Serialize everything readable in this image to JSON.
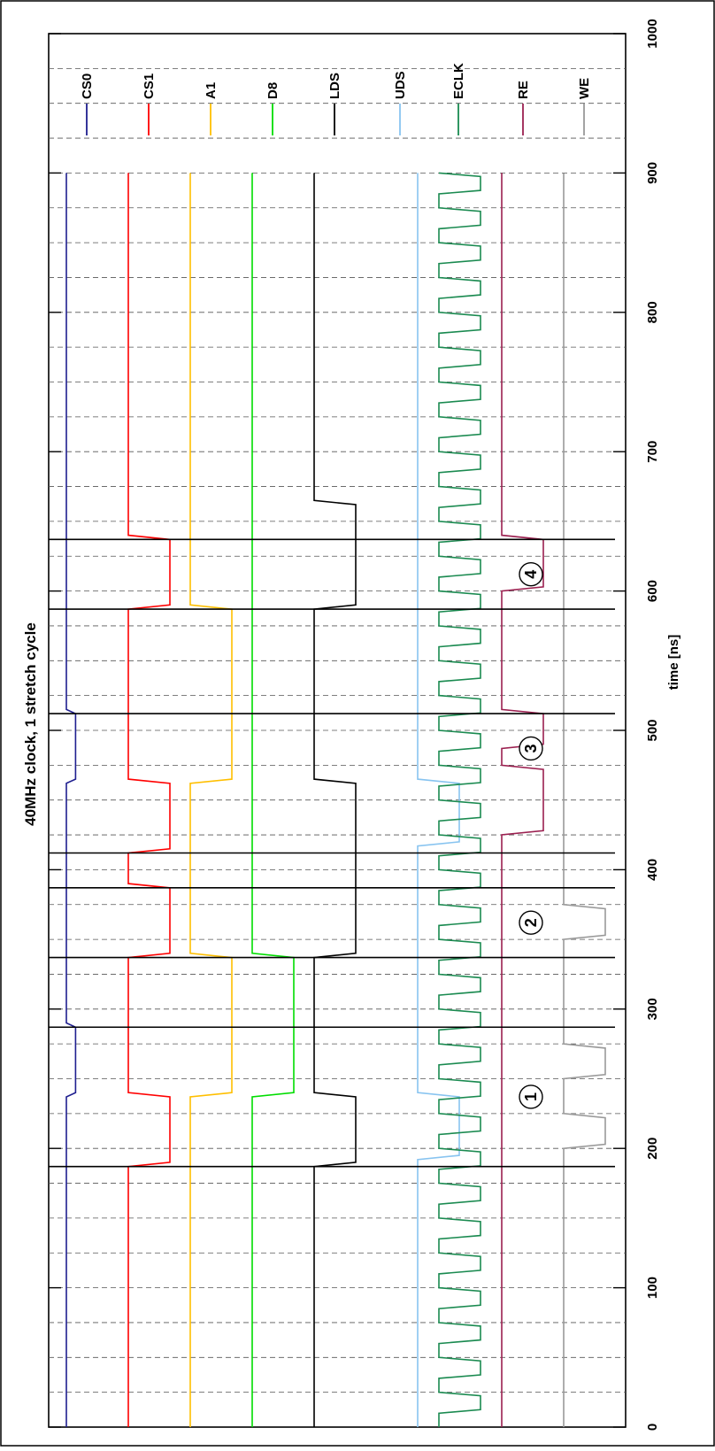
{
  "chart_data": {
    "type": "line",
    "title": "40MHz clock, 1 stretch cycle",
    "xlabel": "time [ns]",
    "xlim": [
      0,
      1000
    ],
    "x_ticks": [
      0,
      100,
      200,
      300,
      400,
      500,
      600,
      700,
      800,
      900,
      1000
    ],
    "x_tick_labels": [
      "0",
      "100",
      "200",
      "300",
      "400",
      "500",
      "600",
      "700",
      "800",
      "900",
      "1000"
    ],
    "grid": true,
    "legend_position": "top-right",
    "series": [
      {
        "name": "CS0",
        "color": "#1f1f8f",
        "high": 0.47,
        "points": [
          [
            0,
            0
          ],
          [
            237,
            0
          ],
          [
            240,
            0.47
          ],
          [
            287,
            0.47
          ],
          [
            290,
            0
          ],
          [
            462,
            0
          ],
          [
            465,
            0.47
          ],
          [
            512,
            0.47
          ],
          [
            515,
            0
          ],
          [
            1000,
            0
          ]
        ]
      },
      {
        "name": "CS1",
        "color": "#ff0000",
        "points": [
          [
            0,
            0
          ],
          [
            187,
            0
          ],
          [
            190,
            1
          ],
          [
            237,
            1
          ],
          [
            240,
            0
          ],
          [
            337,
            0
          ],
          [
            340,
            1
          ],
          [
            387,
            1
          ],
          [
            390,
            0
          ],
          [
            412,
            0
          ],
          [
            415,
            1
          ],
          [
            462,
            1
          ],
          [
            465,
            0
          ],
          [
            587,
            0
          ],
          [
            590,
            1
          ],
          [
            637,
            1
          ],
          [
            640,
            0
          ],
          [
            1000,
            0
          ]
        ]
      },
      {
        "name": "A1",
        "color": "#ffbf00",
        "points": [
          [
            0,
            0
          ],
          [
            237,
            0
          ],
          [
            240,
            1
          ],
          [
            337,
            1
          ],
          [
            340,
            0
          ],
          [
            462,
            0
          ],
          [
            465,
            1
          ],
          [
            587,
            1
          ],
          [
            590,
            0
          ],
          [
            1000,
            0
          ]
        ]
      },
      {
        "name": "D8",
        "color": "#00dd00",
        "points": [
          [
            0,
            0
          ],
          [
            237,
            0
          ],
          [
            240,
            1
          ],
          [
            337,
            1
          ],
          [
            340,
            0
          ],
          [
            1000,
            0
          ]
        ]
      },
      {
        "name": "LDS",
        "color": "#000000",
        "points": [
          [
            0,
            0
          ],
          [
            187,
            0
          ],
          [
            190,
            1
          ],
          [
            237,
            1
          ],
          [
            240,
            0
          ],
          [
            337,
            0
          ],
          [
            340,
            1
          ],
          [
            462,
            1
          ],
          [
            465,
            0
          ],
          [
            587,
            0
          ],
          [
            590,
            1
          ],
          [
            662,
            1
          ],
          [
            665,
            0
          ],
          [
            1000,
            0
          ]
        ]
      },
      {
        "name": "UDS",
        "color": "#88c4f0",
        "points": [
          [
            0,
            0
          ],
          [
            192,
            0
          ],
          [
            195,
            1
          ],
          [
            237,
            1
          ],
          [
            240,
            0
          ],
          [
            417,
            0
          ],
          [
            420,
            1
          ],
          [
            462,
            1
          ],
          [
            465,
            0
          ],
          [
            1000,
            0
          ]
        ]
      },
      {
        "name": "ECLK",
        "color": "#1a8a50",
        "period_ns": 25,
        "rise_ns": 2.5
      },
      {
        "name": "RE",
        "color": "#9b2050",
        "points": [
          [
            0,
            0
          ],
          [
            425,
            0
          ],
          [
            428,
            1
          ],
          [
            472,
            1
          ],
          [
            475,
            0
          ],
          [
            487,
            0
          ],
          [
            490,
            1
          ],
          [
            512,
            1
          ],
          [
            515,
            0
          ],
          [
            600,
            0
          ],
          [
            603,
            1
          ],
          [
            637,
            1
          ],
          [
            640,
            0
          ],
          [
            1000,
            0
          ]
        ]
      },
      {
        "name": "WE",
        "color": "#999999",
        "points": [
          [
            0,
            0
          ],
          [
            200,
            0
          ],
          [
            203,
            1
          ],
          [
            222,
            1
          ],
          [
            225,
            0
          ],
          [
            250,
            0
          ],
          [
            253,
            1
          ],
          [
            272,
            1
          ],
          [
            275,
            0
          ],
          [
            350,
            0
          ],
          [
            353,
            1
          ],
          [
            372,
            1
          ],
          [
            375,
            0
          ],
          [
            1000,
            0
          ]
        ]
      }
    ],
    "cursors": [
      187,
      287,
      337,
      387,
      412,
      512,
      587,
      637
    ],
    "annotations": [
      {
        "label": "1",
        "x": 237
      },
      {
        "label": "2",
        "x": 362
      },
      {
        "label": "3",
        "x": 487
      },
      {
        "label": "4",
        "x": 612
      }
    ]
  }
}
